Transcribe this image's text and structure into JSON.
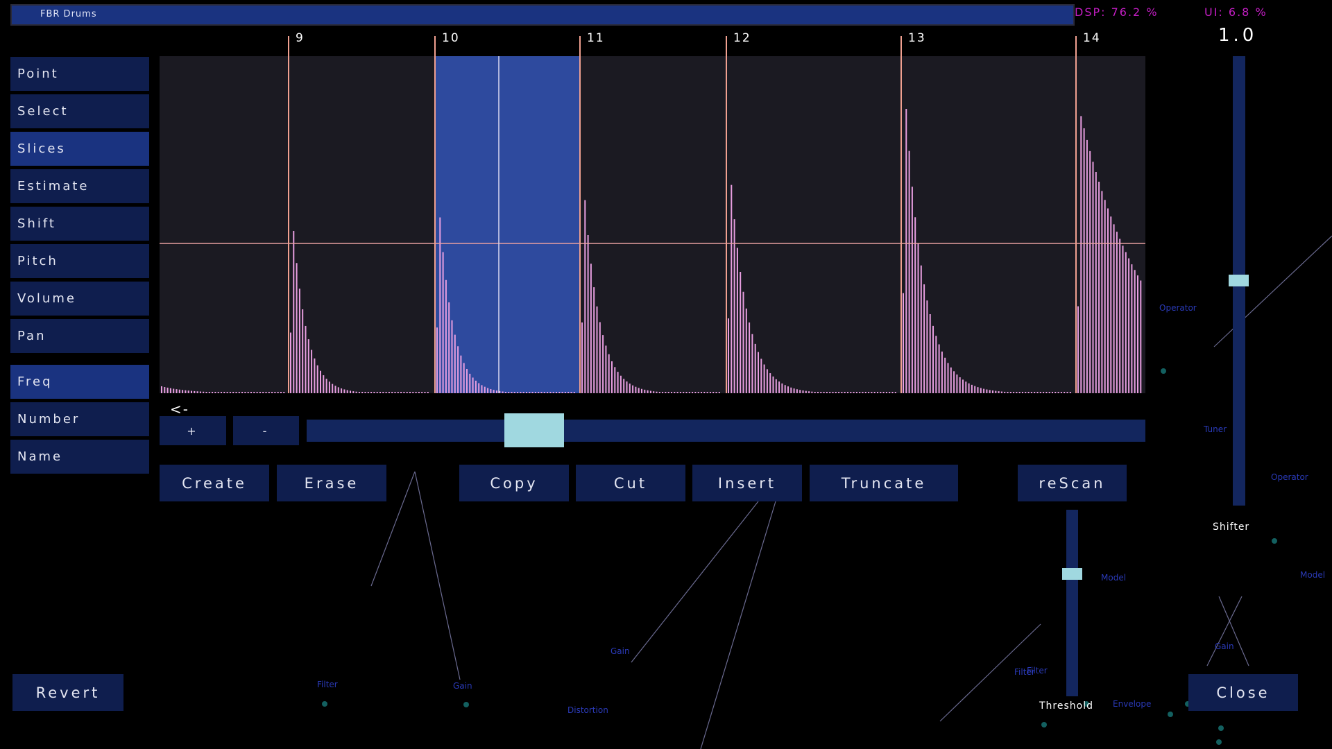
{
  "header": {
    "title": "FBR Drums",
    "dsp": "DSP: 76.2 %",
    "ui": "UI: 6.8 %"
  },
  "value_display": "1.0",
  "tools": [
    "Point",
    "Select",
    "Slices",
    "Estimate",
    "Shift",
    "Pitch",
    "Volume",
    "Pan"
  ],
  "selected_tool": 2,
  "modes": [
    "Freq",
    "Number",
    "Name"
  ],
  "selected_mode": 0,
  "slice_markers": [
    "9",
    "10",
    "11",
    "12",
    "13",
    "14"
  ],
  "nav": {
    "back": "<-",
    "plus": "+",
    "minus": "-"
  },
  "actions": [
    "Create",
    "Erase",
    "Copy",
    "Cut",
    "Insert",
    "Truncate",
    "reScan"
  ],
  "sliders": {
    "shifter": "Shifter",
    "threshold": "Threshold"
  },
  "footer": {
    "revert": "Revert",
    "close": "Close"
  },
  "graph_labels": [
    "Operator",
    "Tuner",
    "Operator",
    "Model",
    "Model",
    "Filter",
    "Gain",
    "Gain",
    "Distortion",
    "Filter",
    "Gain",
    "Filter",
    "Envelope"
  ]
}
